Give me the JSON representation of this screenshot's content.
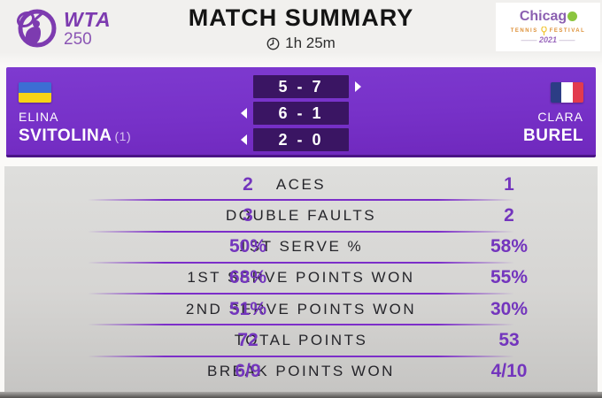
{
  "header": {
    "title": "MATCH SUMMARY",
    "duration": "1h 25m",
    "wta_logo": {
      "line1": "WTA",
      "line2": "250"
    },
    "chicago_logo": {
      "line1": "Chicag",
      "line2a": "TENNIS",
      "line2b": "FESTIVAL",
      "line3": "2021"
    }
  },
  "scoreboard": {
    "player_left": {
      "first_name": "ELINA",
      "last_name": "SVITOLINA",
      "seed": "(1)",
      "flag": "ukraine"
    },
    "player_right": {
      "first_name": "CLARA",
      "last_name": "BUREL",
      "seed": "",
      "flag": "france"
    },
    "sets": [
      {
        "score": "5 - 7",
        "winner": "right"
      },
      {
        "score": "6 - 1",
        "winner": "left"
      },
      {
        "score": "2 - 0",
        "winner": "left"
      }
    ]
  },
  "stats": {
    "rows": [
      {
        "left": "2",
        "label": "ACES",
        "right": "1"
      },
      {
        "left": "3",
        "label": "DOUBLE FAULTS",
        "right": "2"
      },
      {
        "left": "50%",
        "label": "1ST SERVE %",
        "right": "58%"
      },
      {
        "left": "68%",
        "label": "1ST SERVE POINTS WON",
        "right": "55%"
      },
      {
        "left": "51%",
        "label": "2ND SERVE POINTS WON",
        "right": "30%"
      },
      {
        "left": "72",
        "label": "TOTAL POINTS",
        "right": "53"
      },
      {
        "left": "6/9",
        "label": "BREAK POINTS WON",
        "right": "4/10"
      }
    ]
  },
  "colors": {
    "banner_purple": "#7731c8",
    "set_box_purple": "#3a1563",
    "stat_value_purple": "#7335bd",
    "separator_purple": "#7c2ec9",
    "wta_purple": "#7d3bb0",
    "stats_bg": "#d6d5d3"
  }
}
